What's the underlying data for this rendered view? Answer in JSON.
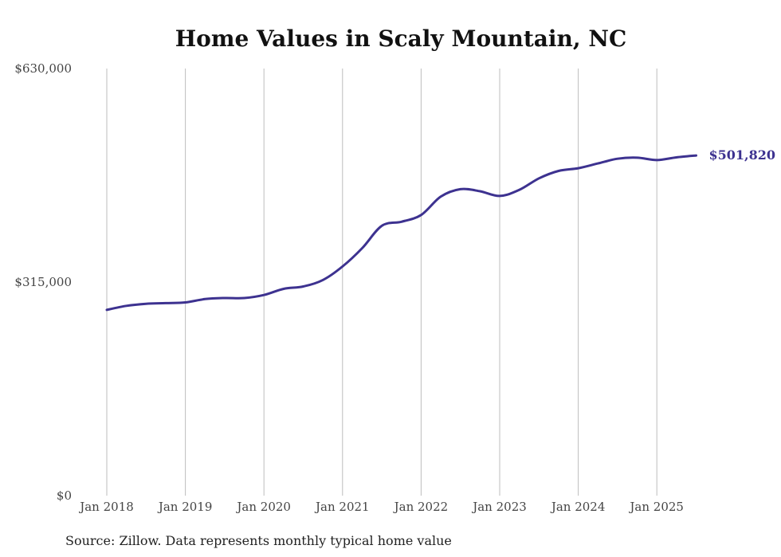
{
  "chart_data": {
    "type": "line",
    "title": "Home Values in Scaly Mountain, NC",
    "xlabel": "",
    "ylabel": "",
    "ylim": [
      0,
      630000
    ],
    "y_ticks": [
      {
        "value": 0,
        "label": "$0"
      },
      {
        "value": 315000,
        "label": "$315,000"
      },
      {
        "value": 630000,
        "label": "$630,000"
      }
    ],
    "x_ticks": [
      {
        "value": 2018.0,
        "label": "Jan 2018"
      },
      {
        "value": 2019.0,
        "label": "Jan 2019"
      },
      {
        "value": 2020.0,
        "label": "Jan 2020"
      },
      {
        "value": 2021.0,
        "label": "Jan 2021"
      },
      {
        "value": 2022.0,
        "label": "Jan 2022"
      },
      {
        "value": 2023.0,
        "label": "Jan 2023"
      },
      {
        "value": 2024.0,
        "label": "Jan 2024"
      },
      {
        "value": 2025.0,
        "label": "Jan 2025"
      }
    ],
    "xlim": [
      2018.0,
      2025.5
    ],
    "vertical_grid": true,
    "line_color": "#3d3290",
    "series": [
      {
        "x": [
          "2018-01",
          "2018-04",
          "2018-07",
          "2018-10",
          "2019-01",
          "2019-04",
          "2019-07",
          "2019-10",
          "2020-01",
          "2020-04",
          "2020-07",
          "2020-10",
          "2021-01",
          "2021-04",
          "2021-07",
          "2021-10",
          "2022-01",
          "2022-04",
          "2022-07",
          "2022-10",
          "2023-01",
          "2023-04",
          "2023-07",
          "2023-10",
          "2024-01",
          "2024-04",
          "2024-07",
          "2024-10",
          "2025-01",
          "2025-04",
          "2025-07"
        ],
        "values": [
          274000,
          280000,
          283000,
          284000,
          285000,
          290000,
          291500,
          291500,
          296000,
          305000,
          308500,
          318000,
          338000,
          365000,
          398000,
          404000,
          414000,
          441000,
          452000,
          449000,
          442000,
          451000,
          468000,
          479000,
          483000,
          490000,
          497000,
          498500,
          495000,
          499000,
          501820
        ]
      }
    ],
    "end_label": "$501,820",
    "source": "Source: Zillow. Data represents monthly typical home value"
  }
}
